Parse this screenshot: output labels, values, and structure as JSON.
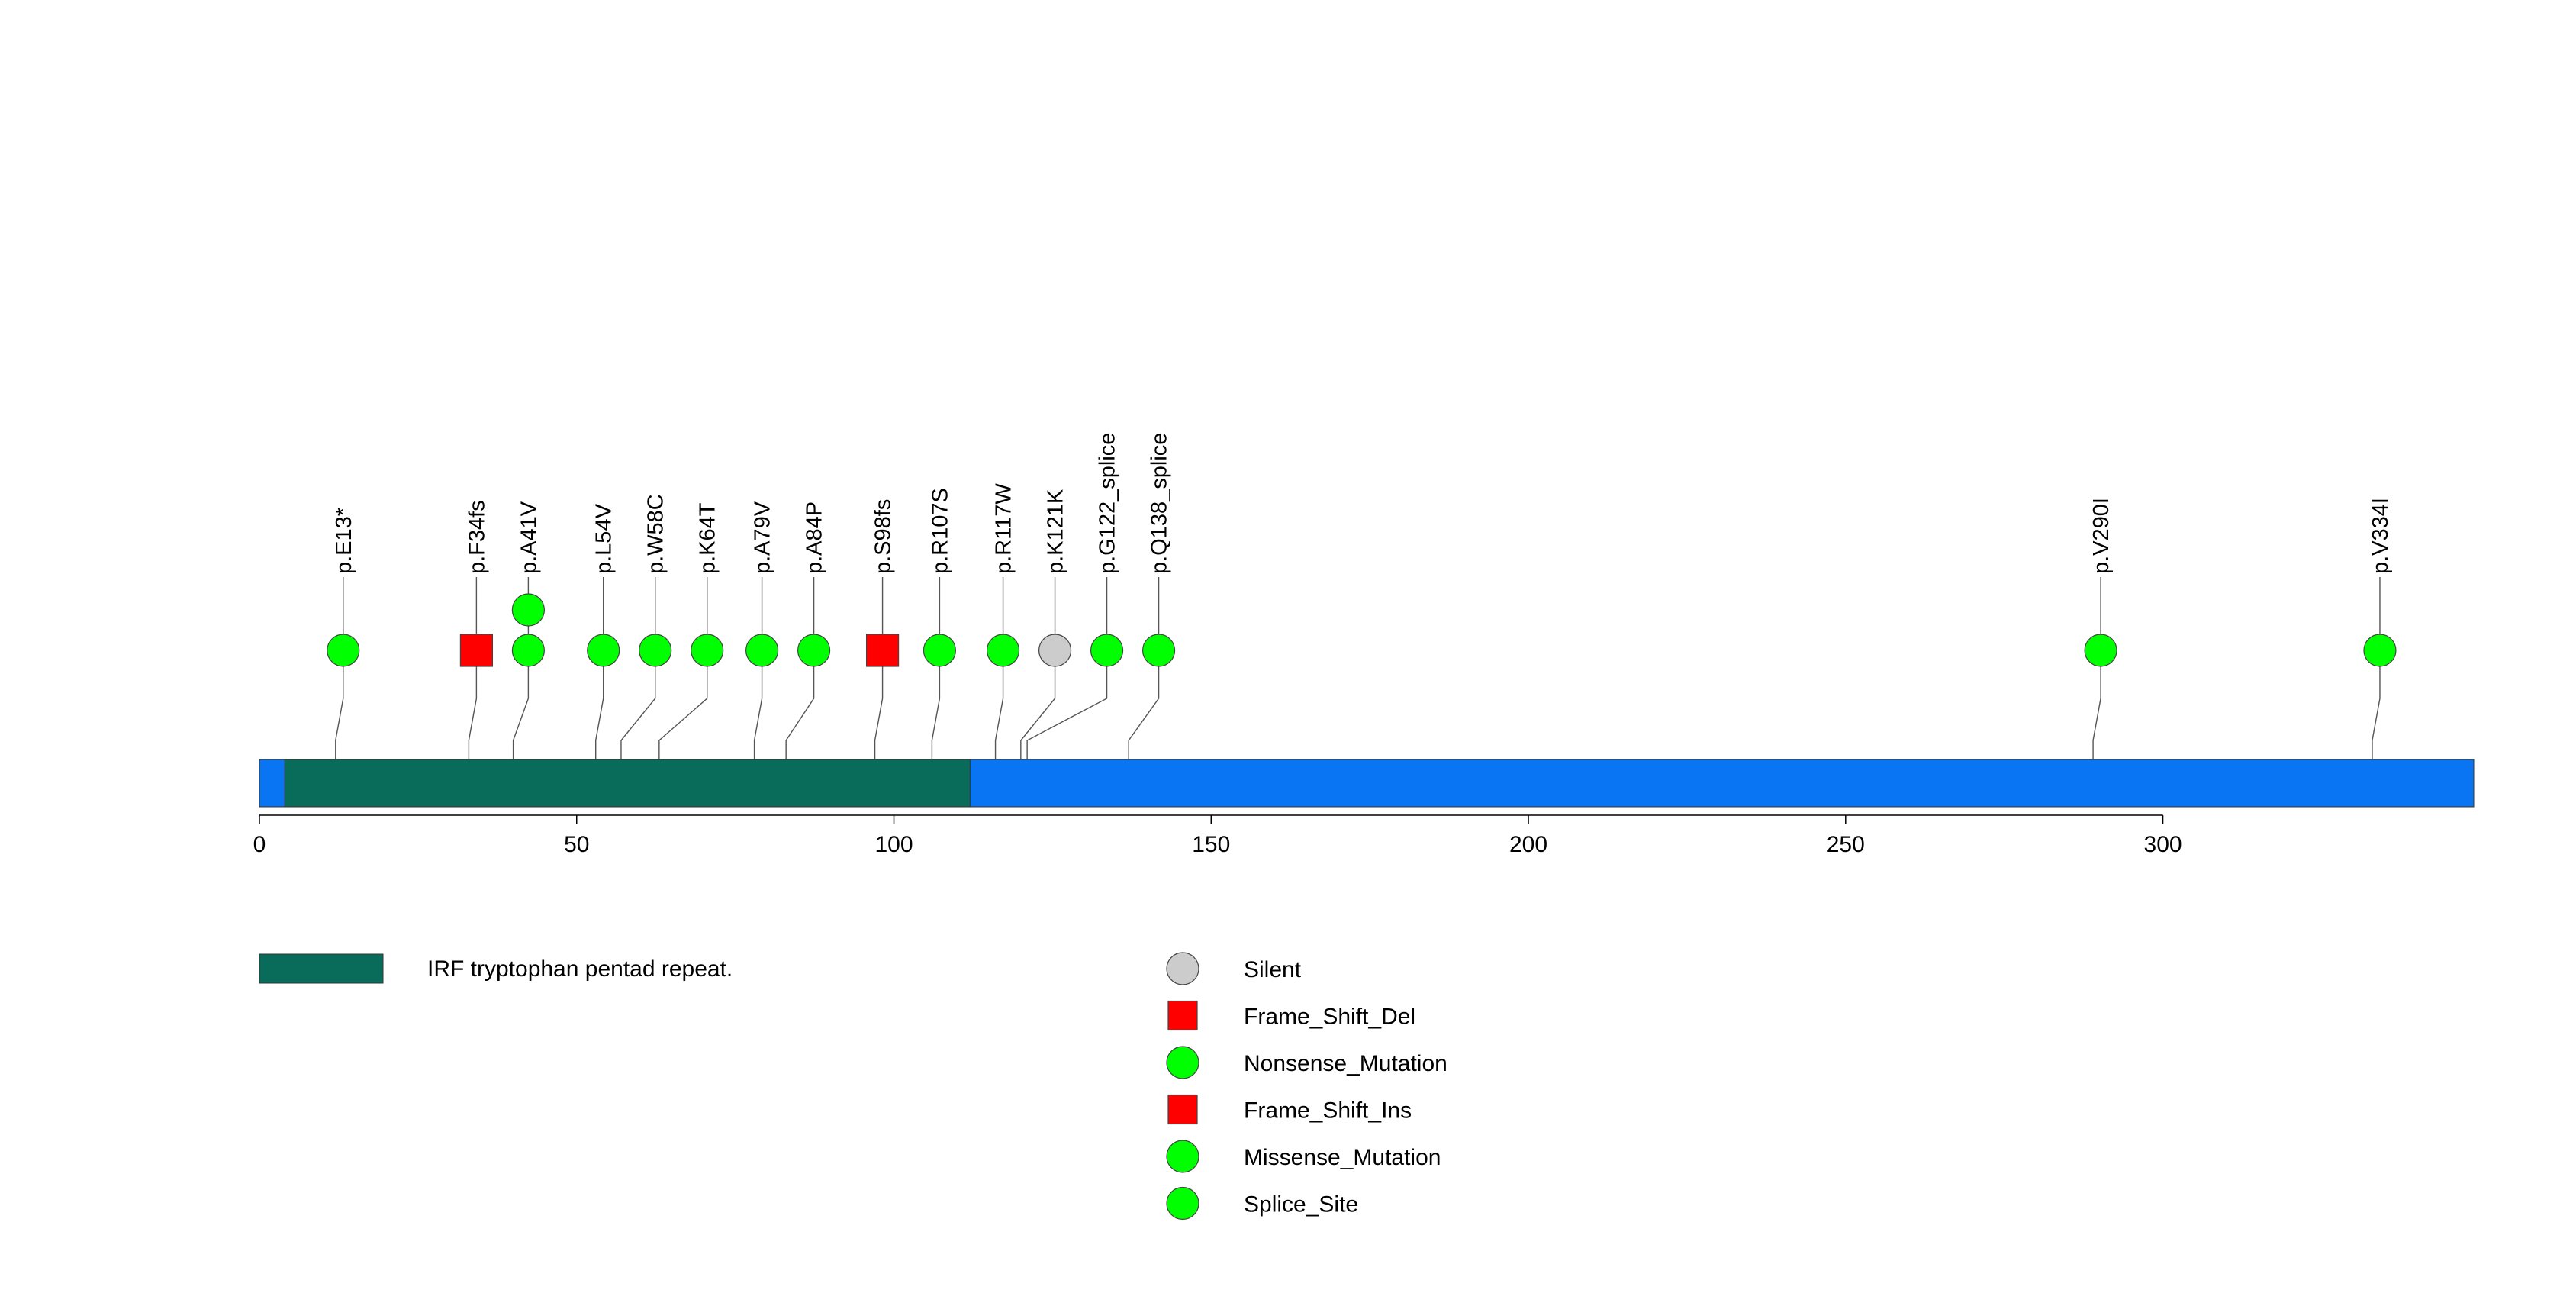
{
  "chart_data": {
    "type": "lollipop",
    "protein_length": 349,
    "xlim": [
      0,
      349
    ],
    "x_ticks": [
      0,
      50,
      100,
      150,
      200,
      250,
      300
    ],
    "domains": [
      {
        "name": "IRF tryptophan pentad repeat.",
        "start": 4,
        "end": 112,
        "color": "#096B5A"
      }
    ],
    "backbone_color": "#0A75F2",
    "mutations": [
      {
        "label": "p.E13*",
        "position": 12,
        "type": "Nonsense_Mutation",
        "count": 1
      },
      {
        "label": "p.F34fs",
        "position": 33,
        "type": "Frame_Shift_Del",
        "count": 1
      },
      {
        "label": "p.A41V",
        "position": 40,
        "type": "Missense_Mutation",
        "count": 2
      },
      {
        "label": "p.L54V",
        "position": 53,
        "type": "Missense_Mutation",
        "count": 1
      },
      {
        "label": "p.W58C",
        "position": 57,
        "type": "Missense_Mutation",
        "count": 1
      },
      {
        "label": "p.K64T",
        "position": 63,
        "type": "Missense_Mutation",
        "count": 1
      },
      {
        "label": "p.A79V",
        "position": 78,
        "type": "Missense_Mutation",
        "count": 1
      },
      {
        "label": "p.A84P",
        "position": 83,
        "type": "Missense_Mutation",
        "count": 1
      },
      {
        "label": "p.S98fs",
        "position": 97,
        "type": "Frame_Shift_Del",
        "count": 1
      },
      {
        "label": "p.R107S",
        "position": 106,
        "type": "Missense_Mutation",
        "count": 1
      },
      {
        "label": "p.R117W",
        "position": 116,
        "type": "Missense_Mutation",
        "count": 1
      },
      {
        "label": "p.K121K",
        "position": 120,
        "type": "Silent",
        "count": 1
      },
      {
        "label": "p.G122_splice",
        "position": 121,
        "type": "Splice_Site",
        "count": 1
      },
      {
        "label": "p.Q138_splice",
        "position": 137,
        "type": "Splice_Site",
        "count": 1
      },
      {
        "label": "p.V290I",
        "position": 289,
        "type": "Missense_Mutation",
        "count": 1
      },
      {
        "label": "p.V334I",
        "position": 333,
        "type": "Missense_Mutation",
        "count": 1
      }
    ],
    "legend": {
      "mutation_types": [
        {
          "label": "Silent",
          "shape": "circle",
          "color": "#CCCCCC"
        },
        {
          "label": "Frame_Shift_Del",
          "shape": "square",
          "color": "#FF0000"
        },
        {
          "label": "Nonsense_Mutation",
          "shape": "circle",
          "color": "#00FF00"
        },
        {
          "label": "Frame_Shift_Ins",
          "shape": "square",
          "color": "#FF0000"
        },
        {
          "label": "Missense_Mutation",
          "shape": "circle",
          "color": "#00FF00"
        },
        {
          "label": "Splice_Site",
          "shape": "circle",
          "color": "#00FF00"
        }
      ]
    }
  }
}
